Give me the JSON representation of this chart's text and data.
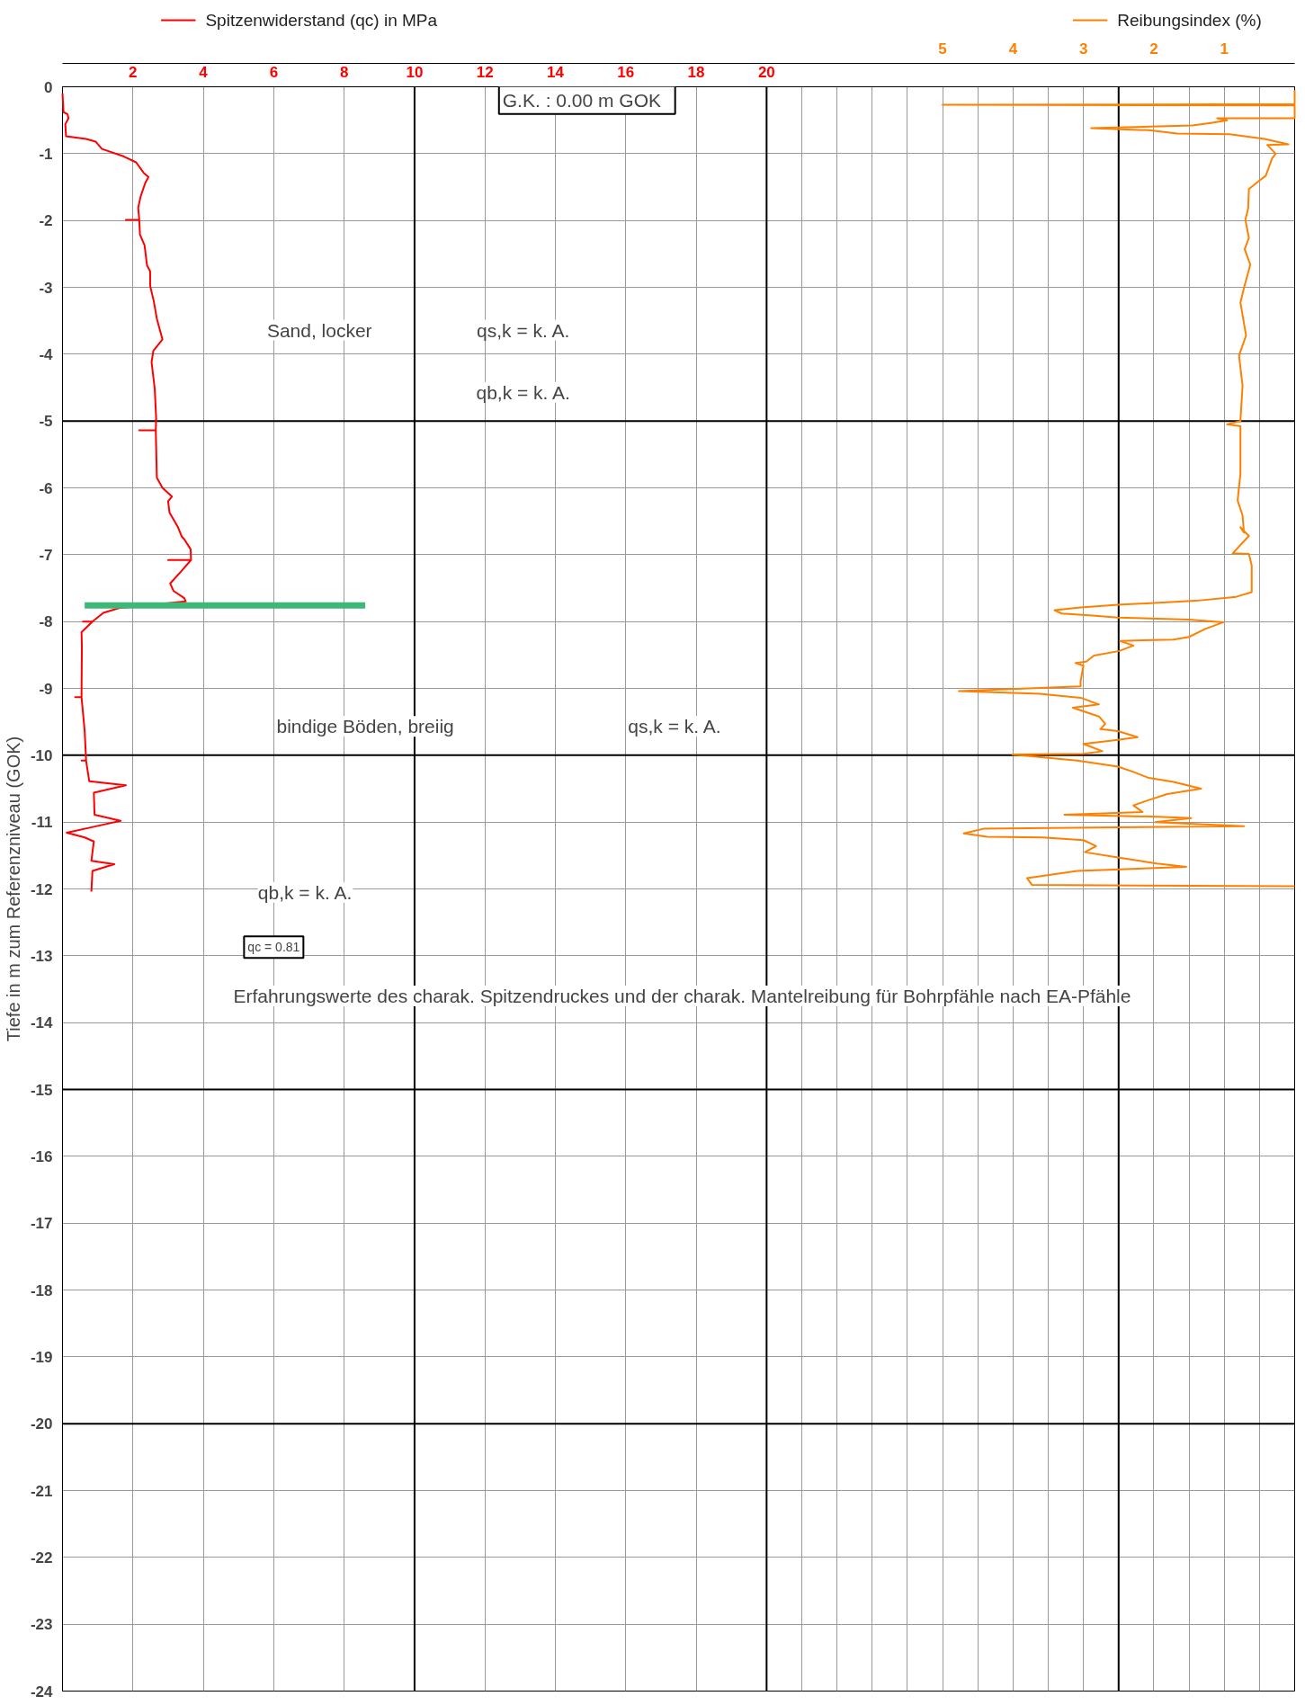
{
  "chart_data": {
    "type": "line",
    "ylabel": "Tiefe in m zum Referenzniveau (GOK)",
    "xlim": [
      0,
      35
    ],
    "ylim": [
      -24,
      0
    ],
    "x2lim": [
      17.5,
      0
    ],
    "xticks": [
      2,
      4,
      6,
      8,
      10,
      12,
      14,
      16,
      18,
      20,
      {
        "value": 21,
        "label": null
      },
      {
        "value": 22,
        "label": null
      },
      {
        "value": 23,
        "label": null
      },
      {
        "value": 24,
        "label": null
      },
      {
        "value": 25,
        "label": null
      },
      {
        "value": 26,
        "label": null
      },
      {
        "value": 27,
        "label": null
      },
      {
        "value": 28,
        "label": null
      },
      {
        "value": 29,
        "label": null
      },
      {
        "value": 30,
        "label": null
      },
      {
        "value": 31,
        "label": null
      },
      {
        "value": 32,
        "label": null
      },
      {
        "value": 33,
        "label": null
      },
      {
        "value": 34,
        "label": null
      }
    ],
    "x2ticks": [
      5,
      4,
      3,
      2,
      1
    ],
    "yticks": [
      0,
      -1,
      -2,
      -3,
      -4,
      -5,
      -6,
      -7,
      -8,
      -9,
      -10,
      -11,
      -12,
      -13,
      -14,
      -15,
      -16,
      -17,
      -18,
      -19,
      -20,
      -21,
      -22,
      -23,
      -24
    ],
    "grid": true,
    "legend": "top",
    "marker": "none",
    "line_style": "solid",
    "series": [
      {
        "name": "Spitzenwiderstand (qc) in MPa",
        "color": "#ff0000",
        "x": [
          0,
          0.03,
          0.14,
          0.17,
          0.08,
          0.1,
          0.67,
          0.94,
          1.12,
          1.73,
          2.09,
          2.31,
          2.44,
          2.35,
          2.22,
          2.15,
          2.18,
          1.8,
          2.18,
          2.2,
          2.33,
          2.4,
          2.49,
          2.49,
          2.59,
          2.68,
          2.84,
          2.58,
          2.53,
          2.62,
          2.66,
          2.65,
          2.18,
          2.65,
          2.68,
          2.84,
          3.11,
          3.0,
          3.04,
          3.28,
          3.39,
          3.46,
          3.64,
          3.65,
          3.0,
          3.65,
          3.37,
          3.06,
          3.15,
          3.46,
          3.5,
          1.6,
          1.16,
          0.85,
          0.58,
          0.85,
          0.54,
          0.55,
          0.54,
          0.36,
          0.54,
          0.63,
          0.67,
          0.54,
          0.67,
          0.76,
          1.8,
          0.89,
          0.91,
          1.65,
          0.89,
          0.12,
          0.63,
          0.89,
          0.82,
          1.47,
          0.85,
          0.82
        ],
        "values": [
          -0.1,
          -0.38,
          -0.41,
          -0.47,
          -0.56,
          -0.74,
          -0.78,
          -0.82,
          -0.93,
          -1.04,
          -1.13,
          -1.29,
          -1.35,
          -1.44,
          -1.64,
          -1.81,
          -1.99,
          -1.99,
          -1.99,
          -2.21,
          -2.37,
          -2.67,
          -2.76,
          -2.98,
          -3.2,
          -3.47,
          -3.78,
          -3.95,
          -4.12,
          -4.52,
          -4.96,
          -5.14,
          -5.14,
          -5.14,
          -5.85,
          -6.0,
          -6.13,
          -6.2,
          -6.37,
          -6.59,
          -6.73,
          -6.77,
          -6.92,
          -7.08,
          -7.08,
          -7.08,
          -7.25,
          -7.43,
          -7.54,
          -7.65,
          -7.7,
          -7.8,
          -7.87,
          -8.0,
          -8.0,
          -8.0,
          -8.16,
          -8.36,
          -9.13,
          -9.13,
          -9.13,
          -9.64,
          -10.08,
          -10.08,
          -10.08,
          -10.39,
          -10.45,
          -10.56,
          -10.89,
          -10.98,
          -11.07,
          -11.16,
          -11.23,
          -11.29,
          -11.58,
          -11.63,
          -11.73,
          -12.04
        ]
      },
      {
        "name": "Reibungsindex (%)",
        "color": "#ff8000",
        "axis": "x2",
        "x": [
          0,
          0,
          5.0,
          0,
          0,
          1.1,
          0.96,
          1.19,
          1.45,
          2.89,
          2.07,
          1.67,
          0.92,
          0.43,
          0.3,
          0.09,
          0.39,
          0.27,
          0.32,
          0.41,
          0.52,
          0.65,
          0.66,
          0.7,
          0.65,
          0.71,
          0.63,
          0.72,
          0.77,
          0.69,
          0.79,
          0.74,
          0.77,
          0.96,
          0.77,
          0.77,
          0.81,
          0.74,
          0.72,
          0.77,
          0.65,
          0.88,
          0.65,
          0.61,
          0.61,
          0.83,
          1.41,
          2.51,
          3.04,
          3.41,
          3.31,
          2.87,
          2.51,
          1.5,
          1.01,
          1.27,
          1.5,
          1.72,
          2.48,
          2.29,
          2.49,
          2.85,
          2.96,
          3.11,
          3.0,
          3.04,
          3.04,
          4.77,
          3.62,
          3.04,
          2.78,
          3.15,
          2.78,
          2.69,
          2.76,
          2.51,
          2.23,
          2.51,
          3.0,
          2.73,
          3.0,
          4.01,
          3.09,
          2.51,
          2.29,
          2.07,
          1.72,
          1.33,
          1.81,
          2.07,
          2.29,
          2.16,
          3.27,
          1.94,
          1.47,
          1.98,
          0.72,
          2.51,
          4.42,
          4.7,
          4.37,
          3.58,
          3.0,
          2.82,
          2.98,
          2.51,
          1.96,
          1.54,
          3.09,
          3.8,
          3.73,
          0
        ],
        "values": [
          -0.05,
          -0.26,
          -0.27,
          -0.28,
          -0.47,
          -0.47,
          -0.5,
          -0.54,
          -0.58,
          -0.62,
          -0.65,
          -0.7,
          -0.71,
          -0.78,
          -0.81,
          -0.86,
          -0.87,
          -1.0,
          -1.07,
          -1.33,
          -1.42,
          -1.53,
          -1.82,
          -1.99,
          -2.26,
          -2.43,
          -2.66,
          -3.01,
          -3.23,
          -3.72,
          -4.02,
          -4.47,
          -5.0,
          -5.05,
          -5.08,
          -5.79,
          -6.19,
          -6.41,
          -6.67,
          -6.59,
          -6.72,
          -6.98,
          -6.99,
          -7.16,
          -7.56,
          -7.63,
          -7.69,
          -7.75,
          -7.79,
          -7.83,
          -7.88,
          -7.91,
          -7.94,
          -7.97,
          -8.01,
          -8.11,
          -8.23,
          -8.27,
          -8.29,
          -8.36,
          -8.44,
          -8.51,
          -8.6,
          -8.62,
          -8.66,
          -8.89,
          -8.97,
          -9.04,
          -9.08,
          -9.14,
          -9.24,
          -9.29,
          -9.42,
          -9.53,
          -9.61,
          -9.64,
          -9.73,
          -9.77,
          -9.83,
          -9.94,
          -9.98,
          -9.99,
          -10.08,
          -10.17,
          -10.25,
          -10.34,
          -10.4,
          -10.5,
          -10.58,
          -10.67,
          -10.75,
          -10.85,
          -10.89,
          -10.92,
          -10.94,
          -11.0,
          -11.06,
          -11.08,
          -11.1,
          -11.17,
          -11.22,
          -11.23,
          -11.27,
          -11.36,
          -11.45,
          -11.53,
          -11.62,
          -11.67,
          -11.73,
          -11.84,
          -11.94,
          -11.96
        ]
      },
      {
        "color": "#3cb878",
        "x": [
          0.63,
          8.6
        ],
        "values": [
          -7.76,
          -7.76
        ]
      }
    ],
    "annotations": [
      "G.K. :  0.00  m GOK",
      "Sand, locker",
      "qs,k = k. A.",
      "qb,k = k. A.",
      "bindige Böden, breiig",
      "qs,k = k. A.",
      "qb,k = k. A.",
      "qc = 0.81",
      "Erfahrungswerte des charak. Spitzendruckes und der charak. Mantelreibung für Bohrpfähle nach EA-Pfähle"
    ]
  }
}
